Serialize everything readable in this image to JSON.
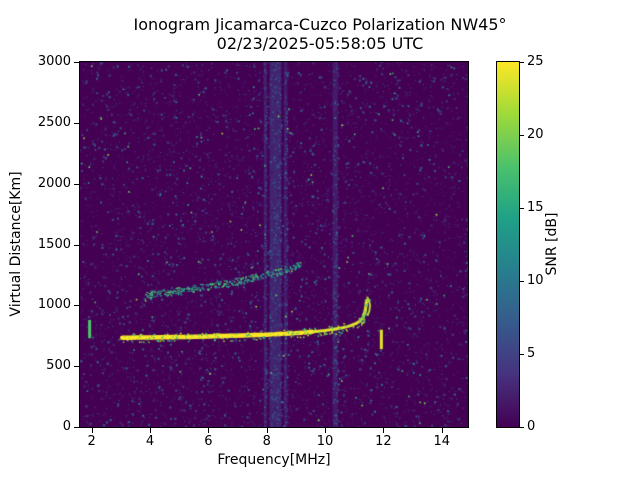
{
  "chart_data": {
    "type": "heatmap",
    "title": "Ionogram Jicamarca-Cuzco Polarization NW45°",
    "subtitle": "02/23/2025-05:58:05 UTC",
    "xlabel": "Frequency[MHz]",
    "ylabel": "Virtual Distance[Km]",
    "colorbar_label": "SNR [dB]",
    "xlim": [
      1.6,
      14.9
    ],
    "ylim": [
      0,
      3000
    ],
    "clim": [
      0,
      25
    ],
    "xticks": [
      2,
      4,
      6,
      8,
      10,
      12,
      14
    ],
    "yticks": [
      0,
      500,
      1000,
      1500,
      2000,
      2500,
      3000
    ],
    "colorbar_ticks": [
      0,
      5,
      10,
      15,
      20,
      25
    ],
    "colormap": "viridis",
    "grid": false,
    "legend": "none",
    "background_snr_db": 0,
    "viridis_stops": [
      [
        0,
        "#440154"
      ],
      [
        0.14,
        "#46327e"
      ],
      [
        0.29,
        "#365c8d"
      ],
      [
        0.43,
        "#277f8e"
      ],
      [
        0.57,
        "#1fa187"
      ],
      [
        0.71,
        "#4ac16d"
      ],
      [
        0.86,
        "#a0da39"
      ],
      [
        1,
        "#fde725"
      ]
    ],
    "series": [
      {
        "name": "F-region main echo trace",
        "snr_db": 25,
        "points": [
          [
            3.05,
            733
          ],
          [
            3.3,
            734
          ],
          [
            3.6,
            735
          ],
          [
            4.0,
            736
          ],
          [
            4.4,
            737
          ],
          [
            4.8,
            739
          ],
          [
            5.2,
            740
          ],
          [
            5.6,
            742
          ],
          [
            6.0,
            744
          ],
          [
            6.4,
            747
          ],
          [
            6.8,
            749
          ],
          [
            7.2,
            752
          ],
          [
            7.6,
            756
          ],
          [
            8.0,
            759
          ],
          [
            8.4,
            764
          ],
          [
            8.8,
            769
          ],
          [
            9.2,
            775
          ],
          [
            9.6,
            783
          ],
          [
            10.0,
            793
          ],
          [
            10.3,
            803
          ],
          [
            10.6,
            816
          ],
          [
            10.85,
            831
          ],
          [
            11.05,
            849
          ],
          [
            11.2,
            872
          ],
          [
            11.3,
            901
          ],
          [
            11.36,
            940
          ],
          [
            11.4,
            990
          ],
          [
            11.42,
            1040
          ]
        ]
      },
      {
        "name": "cusp hook echo",
        "snr_db": 22,
        "points": [
          [
            11.45,
            1065
          ],
          [
            11.51,
            1040
          ],
          [
            11.54,
            1000
          ],
          [
            11.52,
            955
          ],
          [
            11.46,
            920
          ]
        ]
      },
      {
        "name": "second weaker echo trace",
        "snr_db": 14,
        "points": [
          [
            3.85,
            1090
          ],
          [
            4.2,
            1100
          ],
          [
            4.6,
            1112
          ],
          [
            5.0,
            1124
          ],
          [
            5.4,
            1137
          ],
          [
            5.8,
            1150
          ],
          [
            6.2,
            1165
          ],
          [
            6.6,
            1182
          ],
          [
            7.0,
            1201
          ],
          [
            7.4,
            1221
          ],
          [
            7.8,
            1243
          ],
          [
            8.2,
            1267
          ],
          [
            8.6,
            1293
          ],
          [
            8.95,
            1320
          ],
          [
            9.15,
            1340
          ]
        ]
      }
    ],
    "interference_bands": [
      {
        "freq": 7.95,
        "width": 0.1,
        "snr_db": 4
      },
      {
        "freq": 8.3,
        "width": 0.4,
        "snr_db": 5
      },
      {
        "freq": 8.65,
        "width": 0.12,
        "snr_db": 3.5
      },
      {
        "freq": 10.35,
        "width": 0.18,
        "snr_db": 3.5
      }
    ],
    "vertical_marks": [
      {
        "freq": 1.93,
        "km_range": [
          730,
          880
        ],
        "snr_db": 18
      },
      {
        "freq": 11.93,
        "km_range": [
          640,
          800
        ],
        "snr_db": 24
      }
    ],
    "noise": {
      "seed": 42,
      "speckle_count": 6500,
      "low_snr_range": [
        1,
        9
      ],
      "bright_count": 150,
      "bright_snr_range": [
        12,
        22
      ]
    }
  }
}
